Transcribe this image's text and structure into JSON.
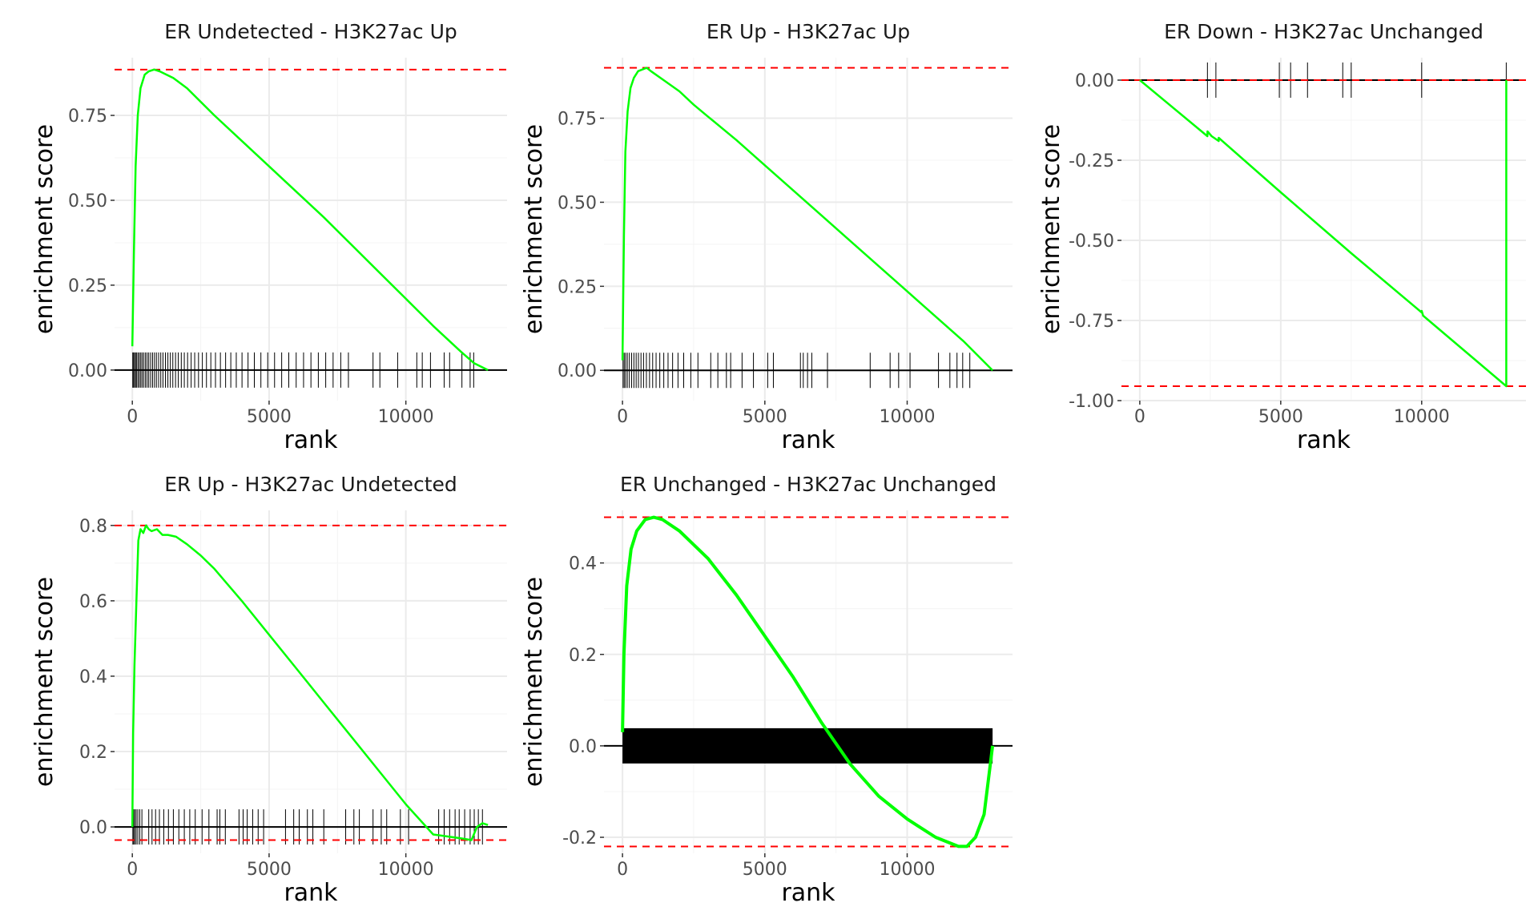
{
  "chart_data": [
    {
      "type": "line",
      "title": "ER Undetected - H3K27ac Up",
      "xlabel": "rank",
      "ylabel": "enrichment score",
      "xlim": [
        -650,
        13700
      ],
      "ylim": [
        -0.09,
        0.92
      ],
      "xticks": [
        0,
        5000,
        10000
      ],
      "xtick_labels": [
        "0",
        "5000",
        "10000"
      ],
      "yticks": [
        0,
        0.25,
        0.5,
        0.75
      ],
      "ytick_labels": [
        "0.00",
        "0.25",
        "0.50",
        "0.75"
      ],
      "grid": true,
      "series": [
        {
          "color": "#00ff00",
          "x": [
            0,
            60,
            120,
            200,
            300,
            450,
            600,
            800,
            1000,
            1500,
            2000,
            2500,
            3000,
            4000,
            5000,
            6000,
            7000,
            8000,
            9000,
            10000,
            11000,
            12000,
            12500,
            13000
          ],
          "y": [
            0.07,
            0.35,
            0.6,
            0.75,
            0.83,
            0.87,
            0.88,
            0.885,
            0.88,
            0.86,
            0.83,
            0.79,
            0.75,
            0.675,
            0.6,
            0.525,
            0.45,
            0.37,
            0.29,
            0.21,
            0.13,
            0.055,
            0.02,
            0.0
          ]
        }
      ],
      "hlines": [
        {
          "y": 0.885,
          "color": "#ff0000",
          "style": "dashed"
        }
      ],
      "rug": [
        {
          "x": [
            15,
            45,
            80,
            120,
            160,
            210,
            260,
            310,
            360,
            420,
            480,
            540,
            600,
            670,
            740,
            810,
            880,
            960,
            1040,
            1120,
            1210,
            1300,
            1390,
            1480,
            1580,
            1680,
            1790,
            1900,
            2020,
            2150,
            2280,
            2420,
            2560,
            2710,
            2870,
            3040,
            3220,
            3410,
            3600,
            3800,
            4010,
            4230,
            4460,
            4700,
            4950,
            5200,
            5460,
            5720,
            5990,
            6260,
            6530,
            6800,
            7070,
            7340,
            7620,
            7900,
            8800,
            9050,
            9700,
            10400,
            10600,
            10900,
            11400,
            11600,
            12050,
            12350,
            12480
          ]
        }
      ]
    },
    {
      "type": "line",
      "title": "ER Up - H3K27ac Up",
      "xlabel": "rank",
      "ylabel": "enrichment score",
      "xlim": [
        -650,
        13700
      ],
      "ylim": [
        -0.09,
        0.93
      ],
      "xticks": [
        0,
        5000,
        10000
      ],
      "xtick_labels": [
        "0",
        "5000",
        "10000"
      ],
      "yticks": [
        0,
        0.25,
        0.5,
        0.75
      ],
      "ytick_labels": [
        "0.00",
        "0.25",
        "0.50",
        "0.75"
      ],
      "grid": true,
      "series": [
        {
          "color": "#00ff00",
          "x": [
            0,
            50,
            100,
            180,
            280,
            400,
            550,
            700,
            850,
            1000,
            1500,
            2000,
            2500,
            3000,
            4000,
            5000,
            6000,
            7000,
            8000,
            9000,
            10000,
            11000,
            12000,
            13000
          ],
          "y": [
            0.03,
            0.4,
            0.65,
            0.77,
            0.84,
            0.87,
            0.89,
            0.895,
            0.9,
            0.89,
            0.86,
            0.83,
            0.79,
            0.755,
            0.685,
            0.61,
            0.535,
            0.46,
            0.385,
            0.31,
            0.235,
            0.16,
            0.085,
            0.0
          ]
        }
      ],
      "hlines": [
        {
          "y": 0.9,
          "color": "#ff0000",
          "style": "dashed"
        }
      ],
      "rug": [
        {
          "x": [
            20,
            60,
            110,
            170,
            240,
            320,
            400,
            480,
            560,
            650,
            740,
            840,
            950,
            1060,
            1180,
            1310,
            1450,
            1600,
            1760,
            1950,
            2150,
            2400,
            2650,
            3100,
            3350,
            3650,
            3800,
            4200,
            4600,
            5100,
            5300,
            6250,
            6350,
            6500,
            6650,
            7200,
            8700,
            9400,
            9700,
            10100,
            11100,
            11500,
            11750,
            11950,
            12200
          ]
        }
      ]
    },
    {
      "type": "line",
      "title": "ER Down - H3K27ac Unchanged",
      "xlabel": "rank",
      "ylabel": "enrichment score",
      "xlim": [
        -650,
        13700
      ],
      "ylim": [
        -1.0,
        0.07
      ],
      "xticks": [
        0,
        5000,
        10000
      ],
      "xtick_labels": [
        "0",
        "5000",
        "10000"
      ],
      "yticks": [
        -1.0,
        -0.75,
        -0.5,
        -0.25,
        0.0
      ],
      "ytick_labels": [
        "-1.00",
        "-0.75",
        "-0.50",
        "-0.25",
        "0.00"
      ],
      "grid": true,
      "series": [
        {
          "color": "#00ff00",
          "x": [
            0,
            2400,
            2401,
            2550,
            2800,
            2801,
            5000,
            7500,
            10000,
            10001,
            10050,
            13000,
            13001
          ],
          "y": [
            0.0,
            -0.175,
            -0.16,
            -0.175,
            -0.19,
            -0.18,
            -0.35,
            -0.54,
            -0.725,
            -0.72,
            -0.735,
            -0.955,
            0.0
          ]
        }
      ],
      "hlines": [
        {
          "y": 0.0,
          "color": "#ff0000",
          "style": "dashed"
        },
        {
          "y": -0.955,
          "color": "#ff0000",
          "style": "dashed"
        }
      ],
      "rug": [
        {
          "x": [
            2400,
            2700,
            4950,
            5350,
            5950,
            7200,
            7500,
            10000,
            13000
          ]
        }
      ]
    },
    {
      "type": "line",
      "title": "ER Up - H3K27ac Undetected",
      "xlabel": "rank",
      "ylabel": "enrichment score",
      "xlim": [
        -650,
        13700
      ],
      "ylim": [
        -0.07,
        0.84
      ],
      "xticks": [
        0,
        5000,
        10000
      ],
      "xtick_labels": [
        "0",
        "5000",
        "10000"
      ],
      "yticks": [
        0.0,
        0.2,
        0.4,
        0.6,
        0.8
      ],
      "ytick_labels": [
        "0.0",
        "0.2",
        "0.4",
        "0.6",
        "0.8"
      ],
      "grid": true,
      "series": [
        {
          "color": "#00ff00",
          "x": [
            0,
            30,
            80,
            150,
            220,
            300,
            400,
            500,
            600,
            700,
            900,
            1100,
            1300,
            1600,
            2000,
            2500,
            3000,
            4000,
            5000,
            6000,
            7000,
            8000,
            9000,
            10000,
            11000,
            12000,
            12400,
            12600,
            12800,
            13000
          ],
          "y": [
            0.0,
            0.25,
            0.43,
            0.6,
            0.76,
            0.79,
            0.78,
            0.8,
            0.79,
            0.785,
            0.79,
            0.775,
            0.775,
            0.77,
            0.75,
            0.72,
            0.685,
            0.6,
            0.51,
            0.42,
            0.33,
            0.24,
            0.15,
            0.06,
            -0.02,
            -0.03,
            -0.035,
            0.0,
            0.01,
            0.005
          ]
        }
      ],
      "hlines": [
        {
          "y": 0.8,
          "color": "#ff0000",
          "style": "dashed"
        },
        {
          "y": -0.035,
          "color": "#ff0000",
          "style": "dashed"
        }
      ],
      "rug": [
        {
          "x": [
            20,
            50,
            90,
            140,
            200,
            270,
            350,
            600,
            720,
            850,
            990,
            1150,
            1320,
            1500,
            1700,
            1900,
            2100,
            2300,
            2550,
            2800,
            3100,
            3200,
            3400,
            3900,
            4050,
            4200,
            4400,
            4600,
            4800,
            5600,
            5900,
            6100,
            6400,
            6600,
            7000,
            7800,
            8100,
            8300,
            8800,
            9100,
            9300,
            9800,
            10100,
            11200,
            11400,
            11600,
            11800,
            11950,
            12150,
            12350,
            12500,
            12650,
            12800
          ]
        }
      ]
    },
    {
      "type": "line",
      "title": "ER Unchanged - H3K27ac Unchanged",
      "xlabel": "rank",
      "ylabel": "enrichment score",
      "xlim": [
        -650,
        13700
      ],
      "ylim": [
        -0.235,
        0.515
      ],
      "xticks": [
        0,
        5000,
        10000
      ],
      "xtick_labels": [
        "0",
        "5000",
        "10000"
      ],
      "yticks": [
        -0.2,
        0.0,
        0.2,
        0.4
      ],
      "ytick_labels": [
        "-0.2",
        "0.0",
        "0.2",
        "0.4"
      ],
      "grid": true,
      "series": [
        {
          "color": "#00ff00",
          "x": [
            0,
            50,
            150,
            300,
            500,
            800,
            1100,
            1400,
            2000,
            3000,
            4000,
            5000,
            6000,
            7000,
            8000,
            9000,
            10000,
            11000,
            11800,
            12100,
            12400,
            12700,
            12900,
            13000
          ],
          "y": [
            0.03,
            0.2,
            0.35,
            0.43,
            0.47,
            0.495,
            0.5,
            0.495,
            0.47,
            0.41,
            0.33,
            0.24,
            0.15,
            0.05,
            -0.04,
            -0.11,
            -0.16,
            -0.2,
            -0.22,
            -0.22,
            -0.2,
            -0.15,
            -0.05,
            0.0
          ]
        }
      ],
      "hlines": [
        {
          "y": 0.5,
          "color": "#ff0000",
          "style": "dashed"
        },
        {
          "y": -0.22,
          "color": "#ff0000",
          "style": "dashed"
        }
      ],
      "rug": [
        {
          "x": [
            0,
            13000
          ],
          "dense": true
        }
      ]
    }
  ]
}
